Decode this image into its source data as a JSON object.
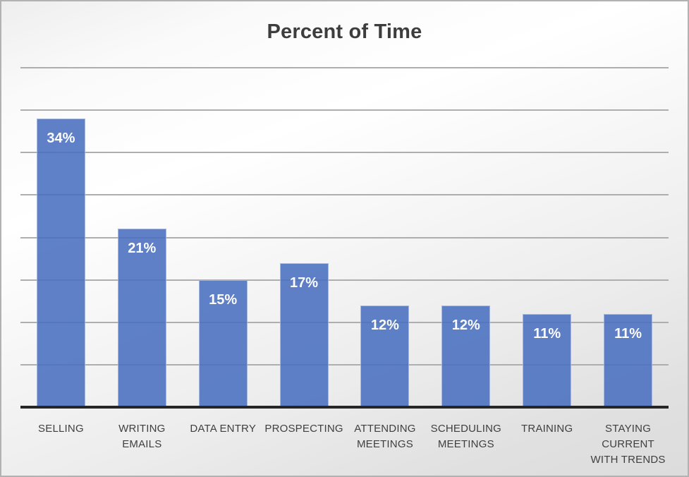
{
  "chart_data": {
    "type": "bar",
    "title": "Percent of Time",
    "categories": [
      "SELLING",
      "WRITING EMAILS",
      "DATA ENTRY",
      "PROSPECTING",
      "ATTENDING MEETINGS",
      "SCHEDULING MEETINGS",
      "TRAINING",
      "STAYING CURRENT WITH TRENDS"
    ],
    "category_label_lines": [
      [
        "SELLING"
      ],
      [
        "WRITING",
        "EMAILS"
      ],
      [
        "DATA ENTRY"
      ],
      [
        "PROSPECTING"
      ],
      [
        "ATTENDING",
        "MEETINGS"
      ],
      [
        "SCHEDULING",
        "MEETINGS"
      ],
      [
        "TRAINING"
      ],
      [
        "STAYING",
        "CURRENT",
        "WITH TRENDS"
      ]
    ],
    "values": [
      34,
      21,
      15,
      17,
      12,
      12,
      11,
      11
    ],
    "data_labels": [
      "34%",
      "21%",
      "15%",
      "17%",
      "12%",
      "12%",
      "11%",
      "11%"
    ],
    "xlabel": "",
    "ylabel": "",
    "ylim": [
      0,
      40
    ],
    "gridline_step": 5,
    "grid": true,
    "legend": false,
    "y_tick_labels_visible": false,
    "colors": {
      "bar_fill": "#4a70c0",
      "bar_border": "#9db1de",
      "gridline": "#aeaeb1",
      "axis_line": "#262626",
      "title_text": "#3d3d3d",
      "category_text": "#3f3f3f",
      "data_label_text": "#ffffff"
    }
  }
}
